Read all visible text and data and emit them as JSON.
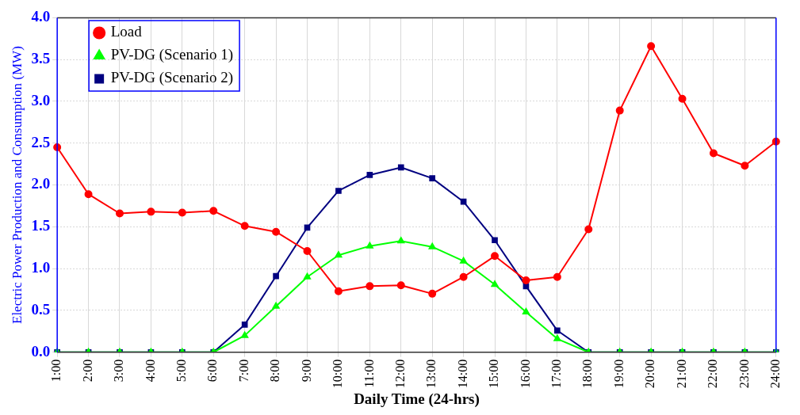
{
  "chart_data": {
    "type": "line",
    "xlabel": "Daily Time (24-hrs)",
    "ylabel": "Electric Power Production and Consumption (MW)",
    "categories": [
      "1:00",
      "2:00",
      "3:00",
      "4:00",
      "5:00",
      "6:00",
      "7:00",
      "8:00",
      "9:00",
      "10:00",
      "11:00",
      "12:00",
      "13:00",
      "14:00",
      "15:00",
      "16:00",
      "17:00",
      "18:00",
      "19:00",
      "20:00",
      "21:00",
      "22:00",
      "23:00",
      "24:00"
    ],
    "series": [
      {
        "name": "Load",
        "color": "#ff0000",
        "marker": "circle",
        "values": [
          2.45,
          1.89,
          1.66,
          1.68,
          1.67,
          1.69,
          1.51,
          1.44,
          1.21,
          0.73,
          0.79,
          0.8,
          0.7,
          0.9,
          1.15,
          0.86,
          0.9,
          1.47,
          2.89,
          3.66,
          3.03,
          2.38,
          2.23,
          2.52
        ]
      },
      {
        "name": "PV-DG (Scenario 1)",
        "color": "#00ff00",
        "marker": "triangle",
        "values": [
          0,
          0,
          0,
          0,
          0,
          0,
          0.2,
          0.55,
          0.9,
          1.16,
          1.27,
          1.33,
          1.26,
          1.09,
          0.81,
          0.48,
          0.16,
          0,
          0,
          0,
          0,
          0,
          0,
          0
        ]
      },
      {
        "name": "PV-DG (Scenario 2)",
        "color": "#000080",
        "marker": "square",
        "values": [
          0,
          0,
          0,
          0,
          0,
          0,
          0.33,
          0.91,
          1.49,
          1.93,
          2.12,
          2.21,
          2.08,
          1.8,
          1.34,
          0.79,
          0.26,
          0,
          0,
          0,
          0,
          0,
          0,
          0
        ]
      }
    ],
    "ylim": [
      0,
      4
    ],
    "yticks": [
      {
        "value": 0,
        "label": "0.0"
      },
      0.5,
      {
        "value": 1,
        "label": "1.0"
      },
      1.5,
      {
        "value": 2,
        "label": "2.0"
      },
      2.5,
      {
        "value": 3,
        "label": "3.0"
      },
      3.5,
      {
        "value": 4,
        "label": "4.0"
      }
    ],
    "grid": true,
    "legend": "top left",
    "line_style": "solid"
  }
}
